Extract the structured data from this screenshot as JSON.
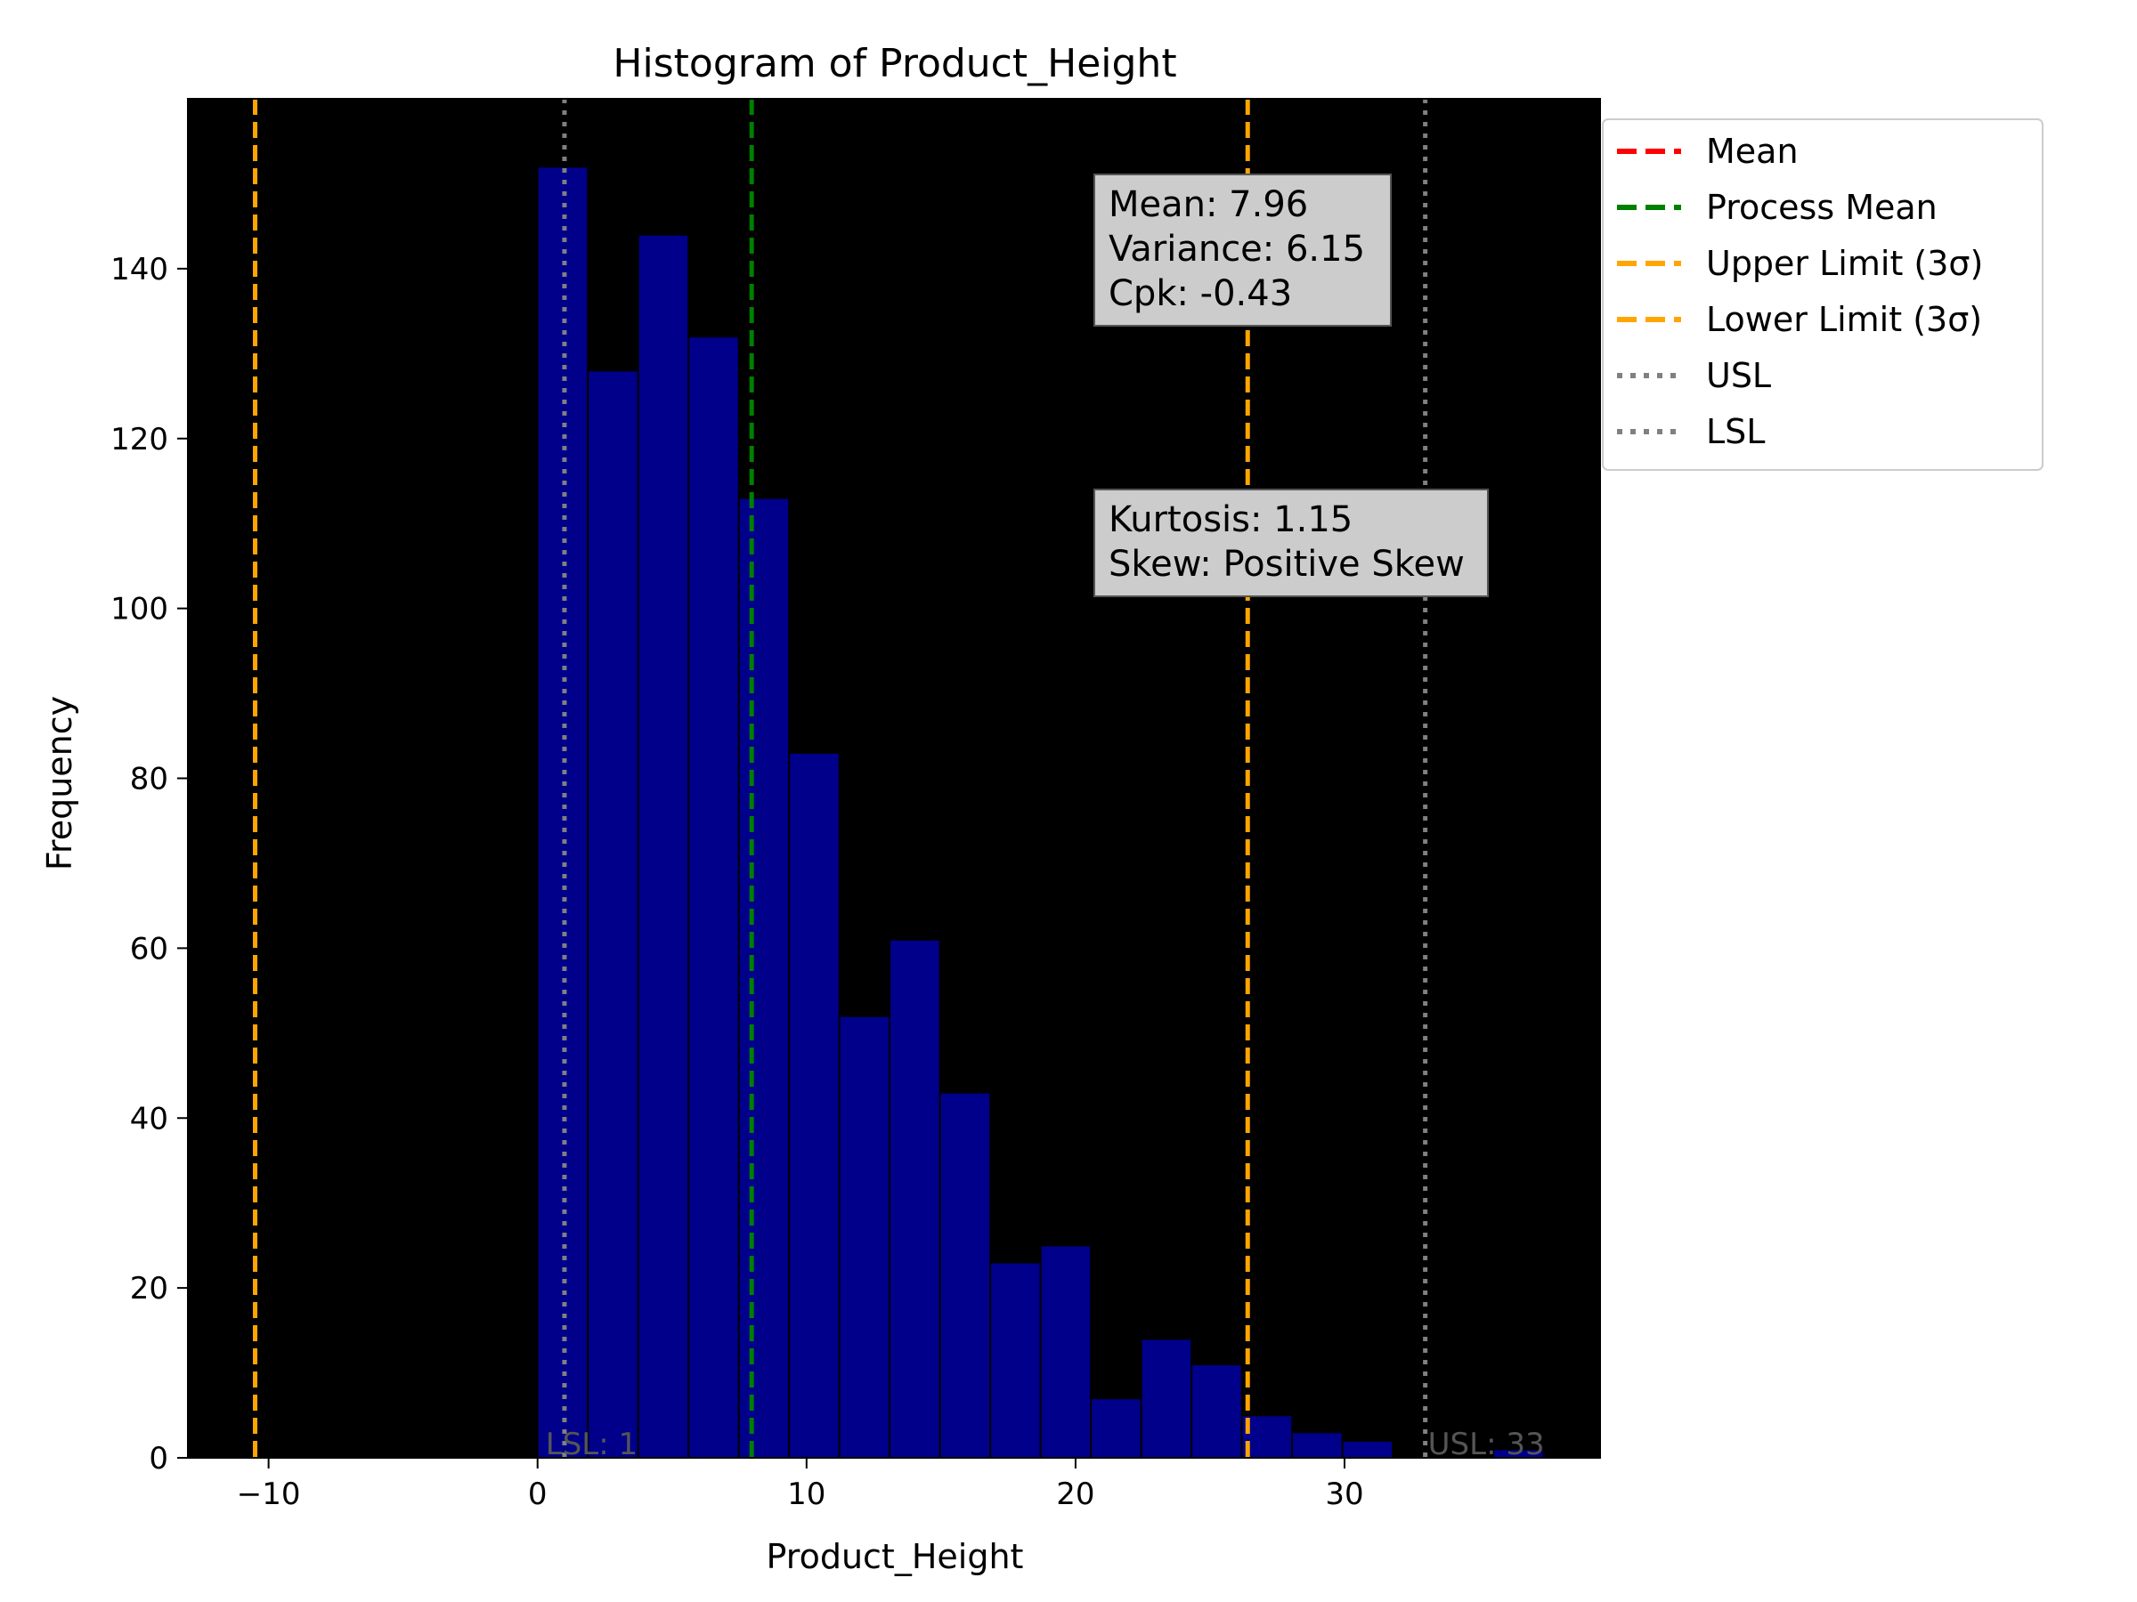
{
  "chart_data": {
    "type": "histogram",
    "title": "Histogram of Product_Height",
    "xlabel": "Product_Height",
    "ylabel": "Frequency",
    "xlim": [
      -13,
      39.5
    ],
    "ylim": [
      0,
      160
    ],
    "xticks": [
      -10,
      0,
      10,
      20,
      30
    ],
    "xtick_labels": [
      "−10",
      "0",
      "10",
      "20",
      "30"
    ],
    "yticks": [
      0,
      20,
      40,
      60,
      80,
      100,
      120,
      140
    ],
    "bin_width": 1.87,
    "bins": [
      {
        "x0": 0.0,
        "count": 152
      },
      {
        "x0": 1.87,
        "count": 128
      },
      {
        "x0": 3.74,
        "count": 144
      },
      {
        "x0": 5.61,
        "count": 132
      },
      {
        "x0": 7.48,
        "count": 113
      },
      {
        "x0": 9.35,
        "count": 83
      },
      {
        "x0": 11.22,
        "count": 52
      },
      {
        "x0": 13.09,
        "count": 61
      },
      {
        "x0": 14.96,
        "count": 43
      },
      {
        "x0": 16.83,
        "count": 23
      },
      {
        "x0": 18.7,
        "count": 25
      },
      {
        "x0": 20.57,
        "count": 7
      },
      {
        "x0": 22.44,
        "count": 14
      },
      {
        "x0": 24.31,
        "count": 11
      },
      {
        "x0": 26.18,
        "count": 5
      },
      {
        "x0": 28.05,
        "count": 3
      },
      {
        "x0": 29.92,
        "count": 2
      },
      {
        "x0": 31.79,
        "count": 0
      },
      {
        "x0": 33.66,
        "count": 0
      },
      {
        "x0": 35.53,
        "count": 1
      }
    ],
    "bar_color": "#00008b",
    "plot_background": "#000000",
    "vlines": [
      {
        "name": "Mean",
        "x": 7.96,
        "color": "#ff0000",
        "style": "dashed",
        "visible": false
      },
      {
        "name": "Process Mean",
        "x": 7.96,
        "color": "#008000",
        "style": "dashed",
        "visible": true
      },
      {
        "name": "Upper Limit (3σ)",
        "x": 26.4,
        "color": "#ffa500",
        "style": "dashed",
        "visible": true
      },
      {
        "name": "Lower Limit (3σ)",
        "x": -10.5,
        "color": "#ffa500",
        "style": "dashed",
        "visible": true
      },
      {
        "name": "USL",
        "x": 33,
        "color": "#808080",
        "style": "dotted",
        "visible": true
      },
      {
        "name": "LSL",
        "x": 1,
        "color": "#808080",
        "style": "dotted",
        "visible": true
      }
    ],
    "limit_labels": [
      {
        "text": "LSL: 1",
        "x": 0.3
      },
      {
        "text": "USL: 33",
        "x": 33.1
      }
    ],
    "stats_box": [
      "Mean: 7.96",
      "Variance: 6.15",
      "Cpk: -0.43"
    ],
    "shape_box": [
      "Kurtosis: 1.15",
      "Skew: Positive Skew"
    ],
    "legend": {
      "placement": "outside-top-right",
      "entries": [
        {
          "label": "Mean",
          "color": "#ff0000",
          "style": "dashed"
        },
        {
          "label": "Process Mean",
          "color": "#008000",
          "style": "dashed"
        },
        {
          "label": "Upper Limit (3σ)",
          "color": "#ffa500",
          "style": "dashed"
        },
        {
          "label": "Lower Limit (3σ)",
          "color": "#ffa500",
          "style": "dashed"
        },
        {
          "label": "USL",
          "color": "#808080",
          "style": "dotted"
        },
        {
          "label": "LSL",
          "color": "#808080",
          "style": "dotted"
        }
      ]
    }
  }
}
